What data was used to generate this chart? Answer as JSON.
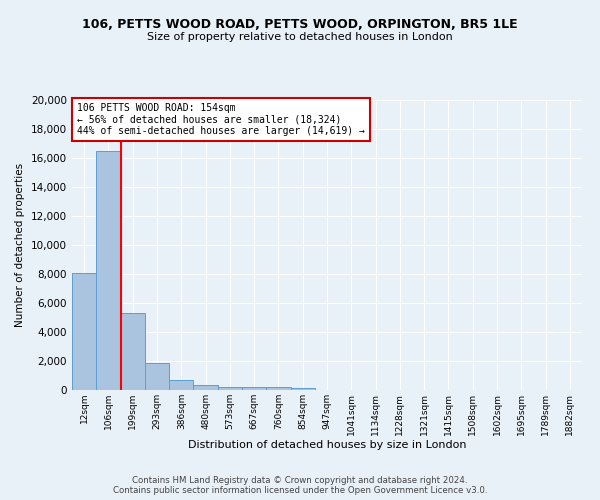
{
  "title": "106, PETTS WOOD ROAD, PETTS WOOD, ORPINGTON, BR5 1LE",
  "subtitle": "Size of property relative to detached houses in London",
  "xlabel": "Distribution of detached houses by size in London",
  "ylabel": "Number of detached properties",
  "categories": [
    "12sqm",
    "106sqm",
    "199sqm",
    "293sqm",
    "386sqm",
    "480sqm",
    "573sqm",
    "667sqm",
    "760sqm",
    "854sqm",
    "947sqm",
    "1041sqm",
    "1134sqm",
    "1228sqm",
    "1321sqm",
    "1415sqm",
    "1508sqm",
    "1602sqm",
    "1695sqm",
    "1789sqm",
    "1882sqm"
  ],
  "values": [
    8100,
    16500,
    5300,
    1850,
    700,
    320,
    230,
    210,
    190,
    130,
    0,
    0,
    0,
    0,
    0,
    0,
    0,
    0,
    0,
    0,
    0
  ],
  "bar_color": "#aac4e0",
  "bar_edge_color": "#5a9fd4",
  "background_color": "#e8f0f8",
  "red_line_x": 1,
  "annotation_title": "106 PETTS WOOD ROAD: 154sqm",
  "annotation_line1": "← 56% of detached houses are smaller (18,324)",
  "annotation_line2": "44% of semi-detached houses are larger (14,619) →",
  "annotation_box_color": "#ffffff",
  "annotation_box_edge": "#cc0000",
  "footer_line1": "Contains HM Land Registry data © Crown copyright and database right 2024.",
  "footer_line2": "Contains public sector information licensed under the Open Government Licence v3.0.",
  "ylim": [
    0,
    20000
  ],
  "yticks": [
    0,
    2000,
    4000,
    6000,
    8000,
    10000,
    12000,
    14000,
    16000,
    18000,
    20000
  ]
}
